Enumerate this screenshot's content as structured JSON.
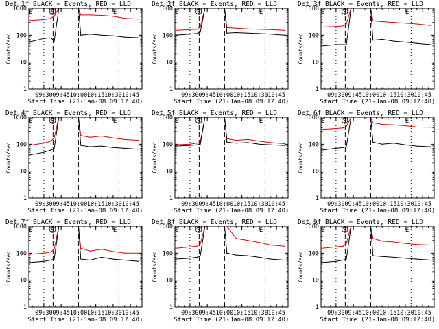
{
  "figure": {
    "event_label": "Events",
    "lld_label": "LLD",
    "xlabel": "Start Time (21-Jan-08 09:17:40)",
    "ylabel": "Counts/sec",
    "marker_S": "S",
    "marker_E": "E",
    "colors": {
      "events": "#000000",
      "lld": "#e00000",
      "axes": "#000000",
      "background": "#ffffff"
    }
  },
  "chart_data": [
    {
      "type": "line",
      "title": "Det 1f BLACK = Events, RED = LLD",
      "xlabel": "Start Time (21-Jan-08 09:17:40)",
      "ylabel": "Counts/sec",
      "yscale": "log",
      "ylim": [
        1,
        1000
      ],
      "xlim": [
        "09:17",
        "10:55"
      ],
      "xticks": [
        "09:30",
        "09:45",
        "10:00",
        "10:15",
        "10:30",
        "10:45"
      ],
      "yticks": [
        "1",
        "10",
        "100",
        "1000"
      ],
      "markers": [
        {
          "label": "E",
          "time": "09:18"
        },
        {
          "label": "S",
          "time": "09:37"
        },
        {
          "label": "E",
          "time": "10:31"
        }
      ],
      "dotted_lines": [
        "09:30",
        "10:35"
      ],
      "dashed_lines": [
        "09:38",
        "10:00"
      ],
      "series": [
        {
          "name": "Events",
          "color": "#000000",
          "x": [
            "09:17",
            "09:30",
            "09:36",
            "09:39",
            "09:43",
            "10:00",
            "10:02",
            "10:10",
            "10:20",
            "10:30",
            "10:40",
            "10:52"
          ],
          "values": [
            55,
            75,
            80,
            60,
            1000,
            1000,
            100,
            110,
            100,
            95,
            85,
            80
          ]
        },
        {
          "name": "LLD",
          "color": "#e00000",
          "x": [
            "09:17",
            "09:30",
            "09:36",
            "09:39",
            "09:43",
            "10:00",
            "10:02",
            "10:10",
            "10:20",
            "10:30",
            "10:40",
            "10:52"
          ],
          "values": [
            350,
            380,
            420,
            500,
            1000,
            1000,
            560,
            560,
            540,
            500,
            420,
            400
          ]
        }
      ]
    },
    {
      "type": "line",
      "title": "Det 2f BLACK = Events, RED = LLD",
      "xlabel": "Start Time (21-Jan-08 09:17:40)",
      "ylabel": "Counts/sec",
      "yscale": "log",
      "ylim": [
        1,
        1000
      ],
      "xlim": [
        "09:17",
        "10:55"
      ],
      "xticks": [
        "09:30",
        "09:45",
        "10:00",
        "10:15",
        "10:30",
        "10:45"
      ],
      "yticks": [
        "1",
        "10",
        "100",
        "1000"
      ],
      "markers": [
        {
          "label": "E",
          "time": "09:18"
        },
        {
          "label": "S",
          "time": "09:37"
        },
        {
          "label": "E",
          "time": "10:31"
        }
      ],
      "dotted_lines": [
        "09:30",
        "10:35"
      ],
      "dashed_lines": [
        "09:38",
        "10:00"
      ],
      "series": [
        {
          "name": "Events",
          "color": "#000000",
          "x": [
            "09:17",
            "09:30",
            "09:36",
            "09:39",
            "09:43",
            "10:00",
            "10:02",
            "10:10",
            "10:20",
            "10:30",
            "10:40",
            "10:52"
          ],
          "values": [
            100,
            110,
            115,
            130,
            1000,
            1000,
            120,
            125,
            120,
            115,
            110,
            100
          ]
        },
        {
          "name": "LLD",
          "color": "#e00000",
          "x": [
            "09:17",
            "09:30",
            "09:36",
            "09:39",
            "09:43",
            "10:00",
            "10:02",
            "10:10",
            "10:20",
            "10:30",
            "10:40",
            "10:52"
          ],
          "values": [
            150,
            160,
            165,
            200,
            1000,
            1000,
            190,
            180,
            170,
            165,
            160,
            150
          ]
        }
      ]
    },
    {
      "type": "line",
      "title": "Det 3f BLACK = Events, RED = LLD",
      "xlabel": "Start Time (21-Jan-08 09:17:40)",
      "ylabel": "Counts/sec",
      "yscale": "log",
      "ylim": [
        1,
        1000
      ],
      "xlim": [
        "09:17",
        "10:55"
      ],
      "xticks": [
        "09:30",
        "09:45",
        "10:00",
        "10:15",
        "10:30",
        "10:45"
      ],
      "yticks": [
        "1",
        "10",
        "100",
        "1000"
      ],
      "markers": [
        {
          "label": "E",
          "time": "09:18"
        },
        {
          "label": "S",
          "time": "09:37"
        },
        {
          "label": "E",
          "time": "10:31"
        }
      ],
      "dotted_lines": [
        "09:30",
        "10:35"
      ],
      "dashed_lines": [
        "09:38",
        "10:00"
      ],
      "series": [
        {
          "name": "Events",
          "color": "#000000",
          "x": [
            "09:17",
            "09:30",
            "09:36",
            "09:39",
            "09:43",
            "10:00",
            "10:02",
            "10:10",
            "10:20",
            "10:30",
            "10:40",
            "10:52"
          ],
          "values": [
            40,
            45,
            45,
            45,
            1000,
            1000,
            65,
            70,
            60,
            55,
            50,
            45
          ]
        },
        {
          "name": "LLD",
          "color": "#e00000",
          "x": [
            "09:17",
            "09:30",
            "09:36",
            "09:39",
            "09:43",
            "10:00",
            "10:02",
            "10:10",
            "10:20",
            "10:30",
            "10:40",
            "10:52"
          ],
          "values": [
            200,
            210,
            220,
            260,
            1000,
            1000,
            340,
            320,
            300,
            280,
            260,
            230
          ]
        }
      ]
    },
    {
      "type": "line",
      "title": "Det 4f BLACK = Events, RED = LLD",
      "xlabel": "Start Time (21-Jan-08 09:17:40)",
      "ylabel": "Counts/sec",
      "yscale": "log",
      "ylim": [
        1,
        1000
      ],
      "xlim": [
        "09:17",
        "10:55"
      ],
      "xticks": [
        "09:30",
        "09:45",
        "10:00",
        "10:15",
        "10:30",
        "10:45"
      ],
      "yticks": [
        "1",
        "10",
        "100",
        "1000"
      ],
      "markers": [
        {
          "label": "E",
          "time": "09:18"
        },
        {
          "label": "S",
          "time": "09:37"
        },
        {
          "label": "E",
          "time": "10:31"
        }
      ],
      "dotted_lines": [
        "09:30",
        "10:35"
      ],
      "dashed_lines": [
        "09:38",
        "10:00"
      ],
      "series": [
        {
          "name": "Events",
          "color": "#000000",
          "x": [
            "09:17",
            "09:30",
            "09:36",
            "09:39",
            "09:43",
            "10:00",
            "10:02",
            "10:10",
            "10:20",
            "10:30",
            "10:40",
            "10:52"
          ],
          "values": [
            40,
            50,
            60,
            70,
            1000,
            1000,
            90,
            80,
            85,
            75,
            70,
            65
          ]
        },
        {
          "name": "LLD",
          "color": "#e00000",
          "x": [
            "09:17",
            "09:30",
            "09:36",
            "09:39",
            "09:43",
            "10:00",
            "10:02",
            "10:10",
            "10:20",
            "10:30",
            "10:40",
            "10:52"
          ],
          "values": [
            90,
            110,
            130,
            170,
            1000,
            1000,
            210,
            180,
            200,
            170,
            150,
            140
          ]
        }
      ]
    },
    {
      "type": "line",
      "title": "Det 5f BLACK = Events, RED = LLD",
      "xlabel": "Start Time (21-Jan-08 09:17:40)",
      "ylabel": "Counts/sec",
      "yscale": "log",
      "ylim": [
        1,
        1000
      ],
      "xlim": [
        "09:17",
        "10:55"
      ],
      "xticks": [
        "09:30",
        "09:45",
        "10:00",
        "10:15",
        "10:30",
        "10:45"
      ],
      "yticks": [
        "1",
        "10",
        "100",
        "1000"
      ],
      "markers": [
        {
          "label": "E",
          "time": "09:18"
        },
        {
          "label": "S",
          "time": "09:37"
        },
        {
          "label": "E",
          "time": "10:31"
        }
      ],
      "dotted_lines": [
        "09:30",
        "10:35"
      ],
      "dashed_lines": [
        "09:38",
        "10:00"
      ],
      "series": [
        {
          "name": "Events",
          "color": "#000000",
          "x": [
            "09:17",
            "09:30",
            "09:36",
            "09:39",
            "09:43",
            "10:00",
            "10:02",
            "10:10",
            "10:20",
            "10:30",
            "10:40",
            "10:52"
          ],
          "values": [
            85,
            90,
            95,
            100,
            1000,
            1000,
            120,
            110,
            115,
            100,
            95,
            90
          ]
        },
        {
          "name": "LLD",
          "color": "#e00000",
          "x": [
            "09:17",
            "09:30",
            "09:36",
            "09:39",
            "09:43",
            "10:00",
            "10:02",
            "10:10",
            "10:20",
            "10:30",
            "10:40",
            "10:52"
          ],
          "values": [
            95,
            100,
            110,
            120,
            1000,
            1000,
            160,
            140,
            150,
            130,
            115,
            105
          ]
        }
      ]
    },
    {
      "type": "line",
      "title": "Det 6f BLACK = Events, RED = LLD",
      "xlabel": "Start Time (21-Jan-08 09:17:40)",
      "ylabel": "Counts/sec",
      "yscale": "log",
      "ylim": [
        1,
        1000
      ],
      "xlim": [
        "09:17",
        "10:55"
      ],
      "xticks": [
        "09:30",
        "09:45",
        "10:00",
        "10:15",
        "10:30",
        "10:45"
      ],
      "yticks": [
        "1",
        "10",
        "100",
        "1000"
      ],
      "markers": [
        {
          "label": "E",
          "time": "09:18"
        },
        {
          "label": "S",
          "time": "09:37"
        },
        {
          "label": "E",
          "time": "10:31"
        }
      ],
      "dotted_lines": [
        "09:30",
        "10:35"
      ],
      "dashed_lines": [
        "09:38",
        "10:00"
      ],
      "series": [
        {
          "name": "Events",
          "color": "#000000",
          "x": [
            "09:17",
            "09:30",
            "09:36",
            "09:39",
            "09:43",
            "10:00",
            "10:02",
            "10:10",
            "10:20",
            "10:30",
            "10:40",
            "10:52"
          ],
          "values": [
            60,
            70,
            75,
            80,
            1000,
            1000,
            120,
            100,
            110,
            95,
            85,
            80
          ]
        },
        {
          "name": "LLD",
          "color": "#e00000",
          "x": [
            "09:17",
            "09:30",
            "09:36",
            "09:39",
            "09:43",
            "10:00",
            "10:02",
            "10:10",
            "10:20",
            "10:30",
            "10:40",
            "10:52"
          ],
          "values": [
            350,
            380,
            400,
            450,
            1000,
            1000,
            620,
            540,
            520,
            480,
            430,
            420
          ]
        }
      ]
    },
    {
      "type": "line",
      "title": "Det 7f BLACK = Events, RED = LLD",
      "xlabel": "Start Time (21-Jan-08 09:17:40)",
      "ylabel": "Counts/sec",
      "yscale": "log",
      "ylim": [
        1,
        1000
      ],
      "xlim": [
        "09:17",
        "10:55"
      ],
      "xticks": [
        "09:30",
        "09:45",
        "10:00",
        "10:15",
        "10:30",
        "10:45"
      ],
      "yticks": [
        "1",
        "10",
        "100",
        "1000"
      ],
      "markers": [
        {
          "label": "E",
          "time": "09:18"
        },
        {
          "label": "S",
          "time": "09:37"
        },
        {
          "label": "E",
          "time": "10:31"
        }
      ],
      "dotted_lines": [
        "09:30",
        "10:35"
      ],
      "dashed_lines": [
        "09:38",
        "10:00"
      ],
      "series": [
        {
          "name": "Events",
          "color": "#000000",
          "x": [
            "09:17",
            "09:30",
            "09:36",
            "09:39",
            "09:43",
            "10:00",
            "10:02",
            "10:10",
            "10:20",
            "10:30",
            "10:40",
            "10:52"
          ],
          "values": [
            45,
            50,
            55,
            60,
            1000,
            1000,
            60,
            55,
            70,
            60,
            55,
            50
          ]
        },
        {
          "name": "LLD",
          "color": "#e00000",
          "x": [
            "09:17",
            "09:30",
            "09:36",
            "09:39",
            "09:43",
            "10:00",
            "10:02",
            "10:10",
            "10:20",
            "10:30",
            "10:40",
            "10:52"
          ],
          "values": [
            90,
            100,
            110,
            140,
            1000,
            1000,
            150,
            120,
            140,
            115,
            100,
            100
          ]
        }
      ]
    },
    {
      "type": "line",
      "title": "Det 8f BLACK = Events, RED = LLD",
      "xlabel": "Start Time (21-Jan-08 09:17:40)",
      "ylabel": "Counts/sec",
      "yscale": "log",
      "ylim": [
        1,
        1000
      ],
      "xlim": [
        "09:17",
        "10:55"
      ],
      "xticks": [
        "09:30",
        "09:45",
        "10:00",
        "10:15",
        "10:30",
        "10:45"
      ],
      "yticks": [
        "1",
        "10",
        "100",
        "1000"
      ],
      "markers": [
        {
          "label": "E",
          "time": "09:18"
        },
        {
          "label": "S",
          "time": "09:37"
        },
        {
          "label": "E",
          "time": "10:31"
        }
      ],
      "dotted_lines": [
        "09:30",
        "10:35"
      ],
      "dashed_lines": [
        "09:38",
        "10:00"
      ],
      "series": [
        {
          "name": "Events",
          "color": "#000000",
          "x": [
            "09:17",
            "09:30",
            "09:36",
            "09:39",
            "09:43",
            "10:00",
            "10:02",
            "10:10",
            "10:20",
            "10:30",
            "10:40",
            "10:52"
          ],
          "values": [
            60,
            65,
            70,
            80,
            1000,
            1000,
            100,
            85,
            80,
            70,
            60,
            55
          ]
        },
        {
          "name": "LLD",
          "color": "#e00000",
          "x": [
            "09:17",
            "09:30",
            "09:36",
            "09:39",
            "09:43",
            "10:00",
            "10:02",
            "10:10",
            "10:20",
            "10:30",
            "10:40",
            "10:52"
          ],
          "values": [
            150,
            170,
            180,
            220,
            1000,
            1000,
            1000,
            350,
            300,
            250,
            200,
            180
          ]
        }
      ]
    },
    {
      "type": "line",
      "title": "Det 9f BLACK = Events, RED = LLD",
      "xlabel": "Start Time (21-Jan-08 09:17:40)",
      "ylabel": "Counts/sec",
      "yscale": "log",
      "ylim": [
        1,
        1000
      ],
      "xlim": [
        "09:17",
        "10:55"
      ],
      "xticks": [
        "09:30",
        "09:45",
        "10:00",
        "10:15",
        "10:30",
        "10:45"
      ],
      "yticks": [
        "1",
        "10",
        "100",
        "1000"
      ],
      "markers": [
        {
          "label": "E",
          "time": "09:18"
        },
        {
          "label": "S",
          "time": "09:37"
        },
        {
          "label": "E",
          "time": "10:31"
        }
      ],
      "dotted_lines": [
        "09:30",
        "10:35"
      ],
      "dashed_lines": [
        "09:38",
        "10:00"
      ],
      "series": [
        {
          "name": "Events",
          "color": "#000000",
          "x": [
            "09:17",
            "09:30",
            "09:36",
            "09:39",
            "09:43",
            "10:00",
            "10:02",
            "10:10",
            "10:20",
            "10:30",
            "10:40",
            "10:52"
          ],
          "values": [
            45,
            50,
            55,
            60,
            1000,
            1000,
            80,
            75,
            70,
            65,
            60,
            55
          ]
        },
        {
          "name": "LLD",
          "color": "#e00000",
          "x": [
            "09:17",
            "09:30",
            "09:36",
            "09:39",
            "09:43",
            "10:00",
            "10:02",
            "10:10",
            "10:20",
            "10:30",
            "10:40",
            "10:52"
          ],
          "values": [
            150,
            170,
            180,
            230,
            1000,
            1000,
            350,
            280,
            260,
            230,
            210,
            200
          ]
        }
      ]
    }
  ]
}
